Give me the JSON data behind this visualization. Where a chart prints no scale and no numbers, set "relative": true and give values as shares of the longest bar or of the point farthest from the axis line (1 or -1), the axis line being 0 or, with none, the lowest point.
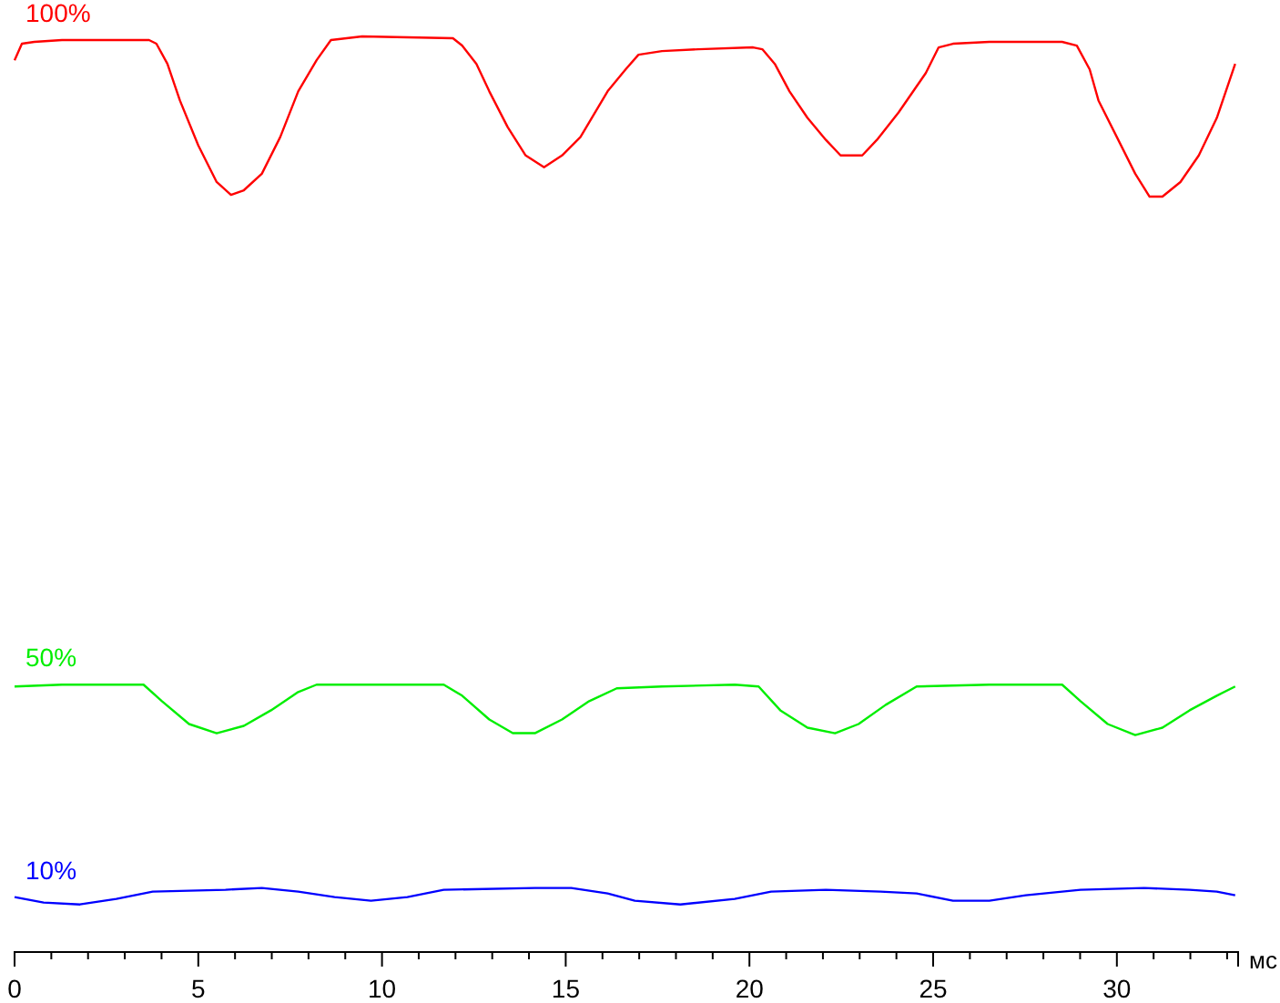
{
  "chart_data": {
    "type": "line",
    "relative": true,
    "xlabel": "мс",
    "xlim": [
      0,
      33.3
    ],
    "xticks": [
      0,
      {
        "value": 1,
        "label": null
      },
      {
        "value": 2,
        "label": null
      },
      {
        "value": 3,
        "label": null
      },
      {
        "value": 4,
        "label": null
      },
      5,
      {
        "value": 6,
        "label": null
      },
      {
        "value": 7,
        "label": null
      },
      {
        "value": 8,
        "label": null
      },
      {
        "value": 9,
        "label": null
      },
      10,
      {
        "value": 11,
        "label": null
      },
      {
        "value": 12,
        "label": null
      },
      {
        "value": 13,
        "label": null
      },
      {
        "value": 14,
        "label": null
      },
      15,
      {
        "value": 16,
        "label": null
      },
      {
        "value": 17,
        "label": null
      },
      {
        "value": 18,
        "label": null
      },
      {
        "value": 19,
        "label": null
      },
      20,
      {
        "value": 21,
        "label": null
      },
      {
        "value": 22,
        "label": null
      },
      {
        "value": 23,
        "label": null
      },
      {
        "value": 24,
        "label": null
      },
      25,
      {
        "value": 26,
        "label": null
      },
      {
        "value": 27,
        "label": null
      },
      {
        "value": 28,
        "label": null
      },
      {
        "value": 29,
        "label": null
      },
      30,
      {
        "value": 31,
        "label": null
      },
      {
        "value": 32,
        "label": null
      },
      {
        "value": 33,
        "label": null
      }
    ],
    "grid": false,
    "legend": false,
    "marker": "none",
    "line_style": "solid",
    "series": [
      {
        "name": "100%",
        "color": "#ff0000",
        "x": [
          0,
          0.2,
          0.54,
          1.29,
          3.66,
          3.86,
          4.16,
          4.5,
          5,
          5.5,
          5.89,
          6.24,
          6.73,
          7.23,
          7.72,
          8.22,
          8.61,
          9.46,
          11.93,
          12.18,
          12.57,
          12.92,
          13.42,
          13.91,
          14.41,
          14.9,
          15.4,
          16.14,
          16.63,
          16.98,
          17.62,
          18.61,
          20.1,
          20.35,
          20.69,
          21.09,
          21.58,
          22.08,
          22.48,
          23.07,
          23.47,
          24.06,
          24.8,
          25.15,
          25.54,
          26.53,
          28.51,
          28.91,
          29.26,
          29.5,
          30,
          30.5,
          30.89,
          31.24,
          31.73,
          32.23,
          32.72,
          33.22
        ],
        "values": [
          0.974,
          0.992,
          0.994,
          0.996,
          0.996,
          0.992,
          0.97,
          0.93,
          0.881,
          0.841,
          0.827,
          0.832,
          0.85,
          0.89,
          0.94,
          0.974,
          0.996,
          1,
          0.998,
          0.99,
          0.97,
          0.94,
          0.901,
          0.87,
          0.857,
          0.87,
          0.89,
          0.94,
          0.964,
          0.98,
          0.984,
          0.986,
          0.988,
          0.986,
          0.97,
          0.94,
          0.911,
          0.887,
          0.87,
          0.87,
          0.887,
          0.917,
          0.96,
          0.988,
          0.992,
          0.994,
          0.994,
          0.99,
          0.964,
          0.93,
          0.89,
          0.85,
          0.825,
          0.825,
          0.841,
          0.87,
          0.911,
          0.97
        ]
      },
      {
        "name": "50%",
        "color": "#00ee00",
        "x": [
          0,
          1.29,
          3.51,
          4.01,
          4.75,
          5.5,
          6.24,
          6.98,
          7.72,
          8.22,
          9.7,
          11.68,
          12.18,
          12.92,
          13.56,
          14.16,
          14.9,
          15.64,
          16.39,
          17.62,
          19.6,
          20.25,
          20.84,
          21.58,
          22.33,
          22.97,
          23.71,
          24.55,
          26.53,
          28.51,
          29.01,
          29.75,
          30.5,
          31.24,
          31.98,
          32.72,
          33.22
        ],
        "values": [
          0.29,
          0.292,
          0.292,
          0.274,
          0.249,
          0.239,
          0.247,
          0.264,
          0.284,
          0.292,
          0.292,
          0.292,
          0.28,
          0.254,
          0.239,
          0.239,
          0.254,
          0.274,
          0.288,
          0.29,
          0.292,
          0.29,
          0.264,
          0.245,
          0.239,
          0.249,
          0.27,
          0.29,
          0.292,
          0.292,
          0.274,
          0.249,
          0.237,
          0.245,
          0.264,
          0.28,
          0.29
        ]
      },
      {
        "name": "10%",
        "color": "#0000ff",
        "x": [
          0,
          0.79,
          1.78,
          2.77,
          3.76,
          5.74,
          6.73,
          7.72,
          8.71,
          9.7,
          10.69,
          11.68,
          14.16,
          15.15,
          16.14,
          16.88,
          18.12,
          19.6,
          20.59,
          22.08,
          23.57,
          24.55,
          25.54,
          26.53,
          27.52,
          29.01,
          30.74,
          31.98,
          32.72,
          33.22
        ],
        "values": [
          0.06,
          0.054,
          0.052,
          0.058,
          0.066,
          0.068,
          0.07,
          0.066,
          0.06,
          0.056,
          0.06,
          0.068,
          0.07,
          0.07,
          0.064,
          0.056,
          0.052,
          0.058,
          0.066,
          0.068,
          0.066,
          0.064,
          0.056,
          0.056,
          0.062,
          0.068,
          0.07,
          0.068,
          0.066,
          0.062
        ]
      }
    ]
  }
}
